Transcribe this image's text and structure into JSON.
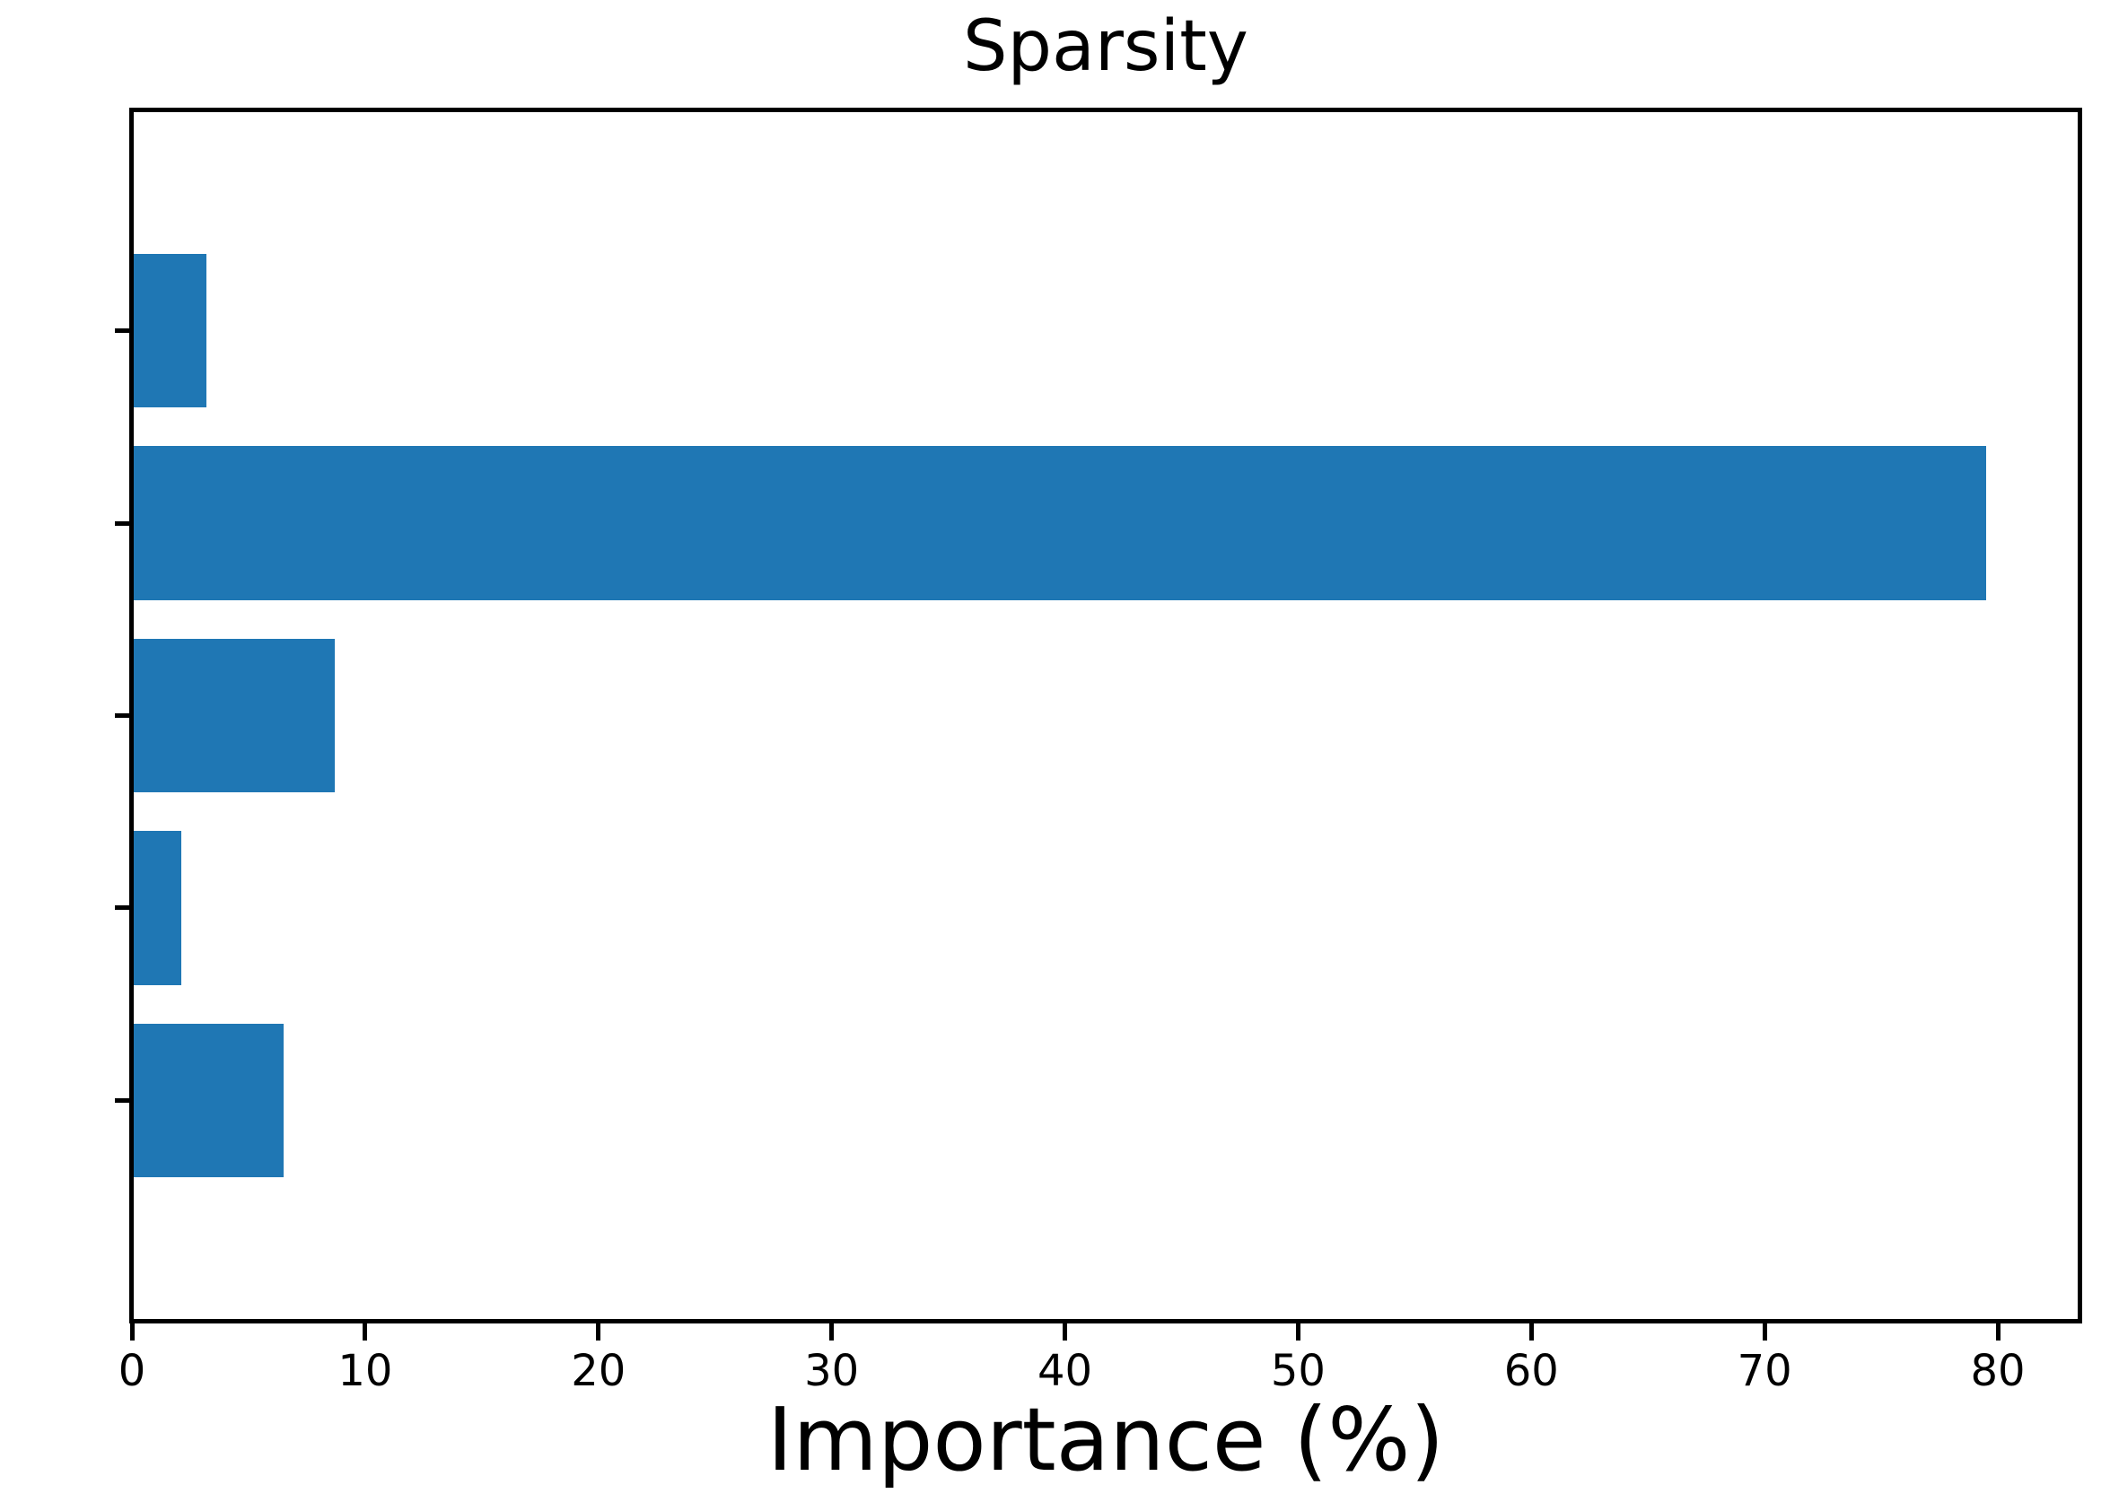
{
  "chart_data": {
    "type": "bar",
    "orientation": "horizontal",
    "title": "Sparsity",
    "xlabel": "Importance (%)",
    "ylabel": "",
    "categories": [
      "",
      "",
      "",
      "",
      ""
    ],
    "values": [
      3.2,
      79.5,
      8.7,
      2.1,
      6.5
    ],
    "xlim": [
      0,
      83.5
    ],
    "xticks": [
      0,
      10,
      20,
      30,
      40,
      50,
      60,
      70,
      80
    ],
    "grid": false,
    "legend": "none",
    "bar_color": "#1f77b4",
    "axis_color": "#000000",
    "background_color": "#ffffff"
  }
}
